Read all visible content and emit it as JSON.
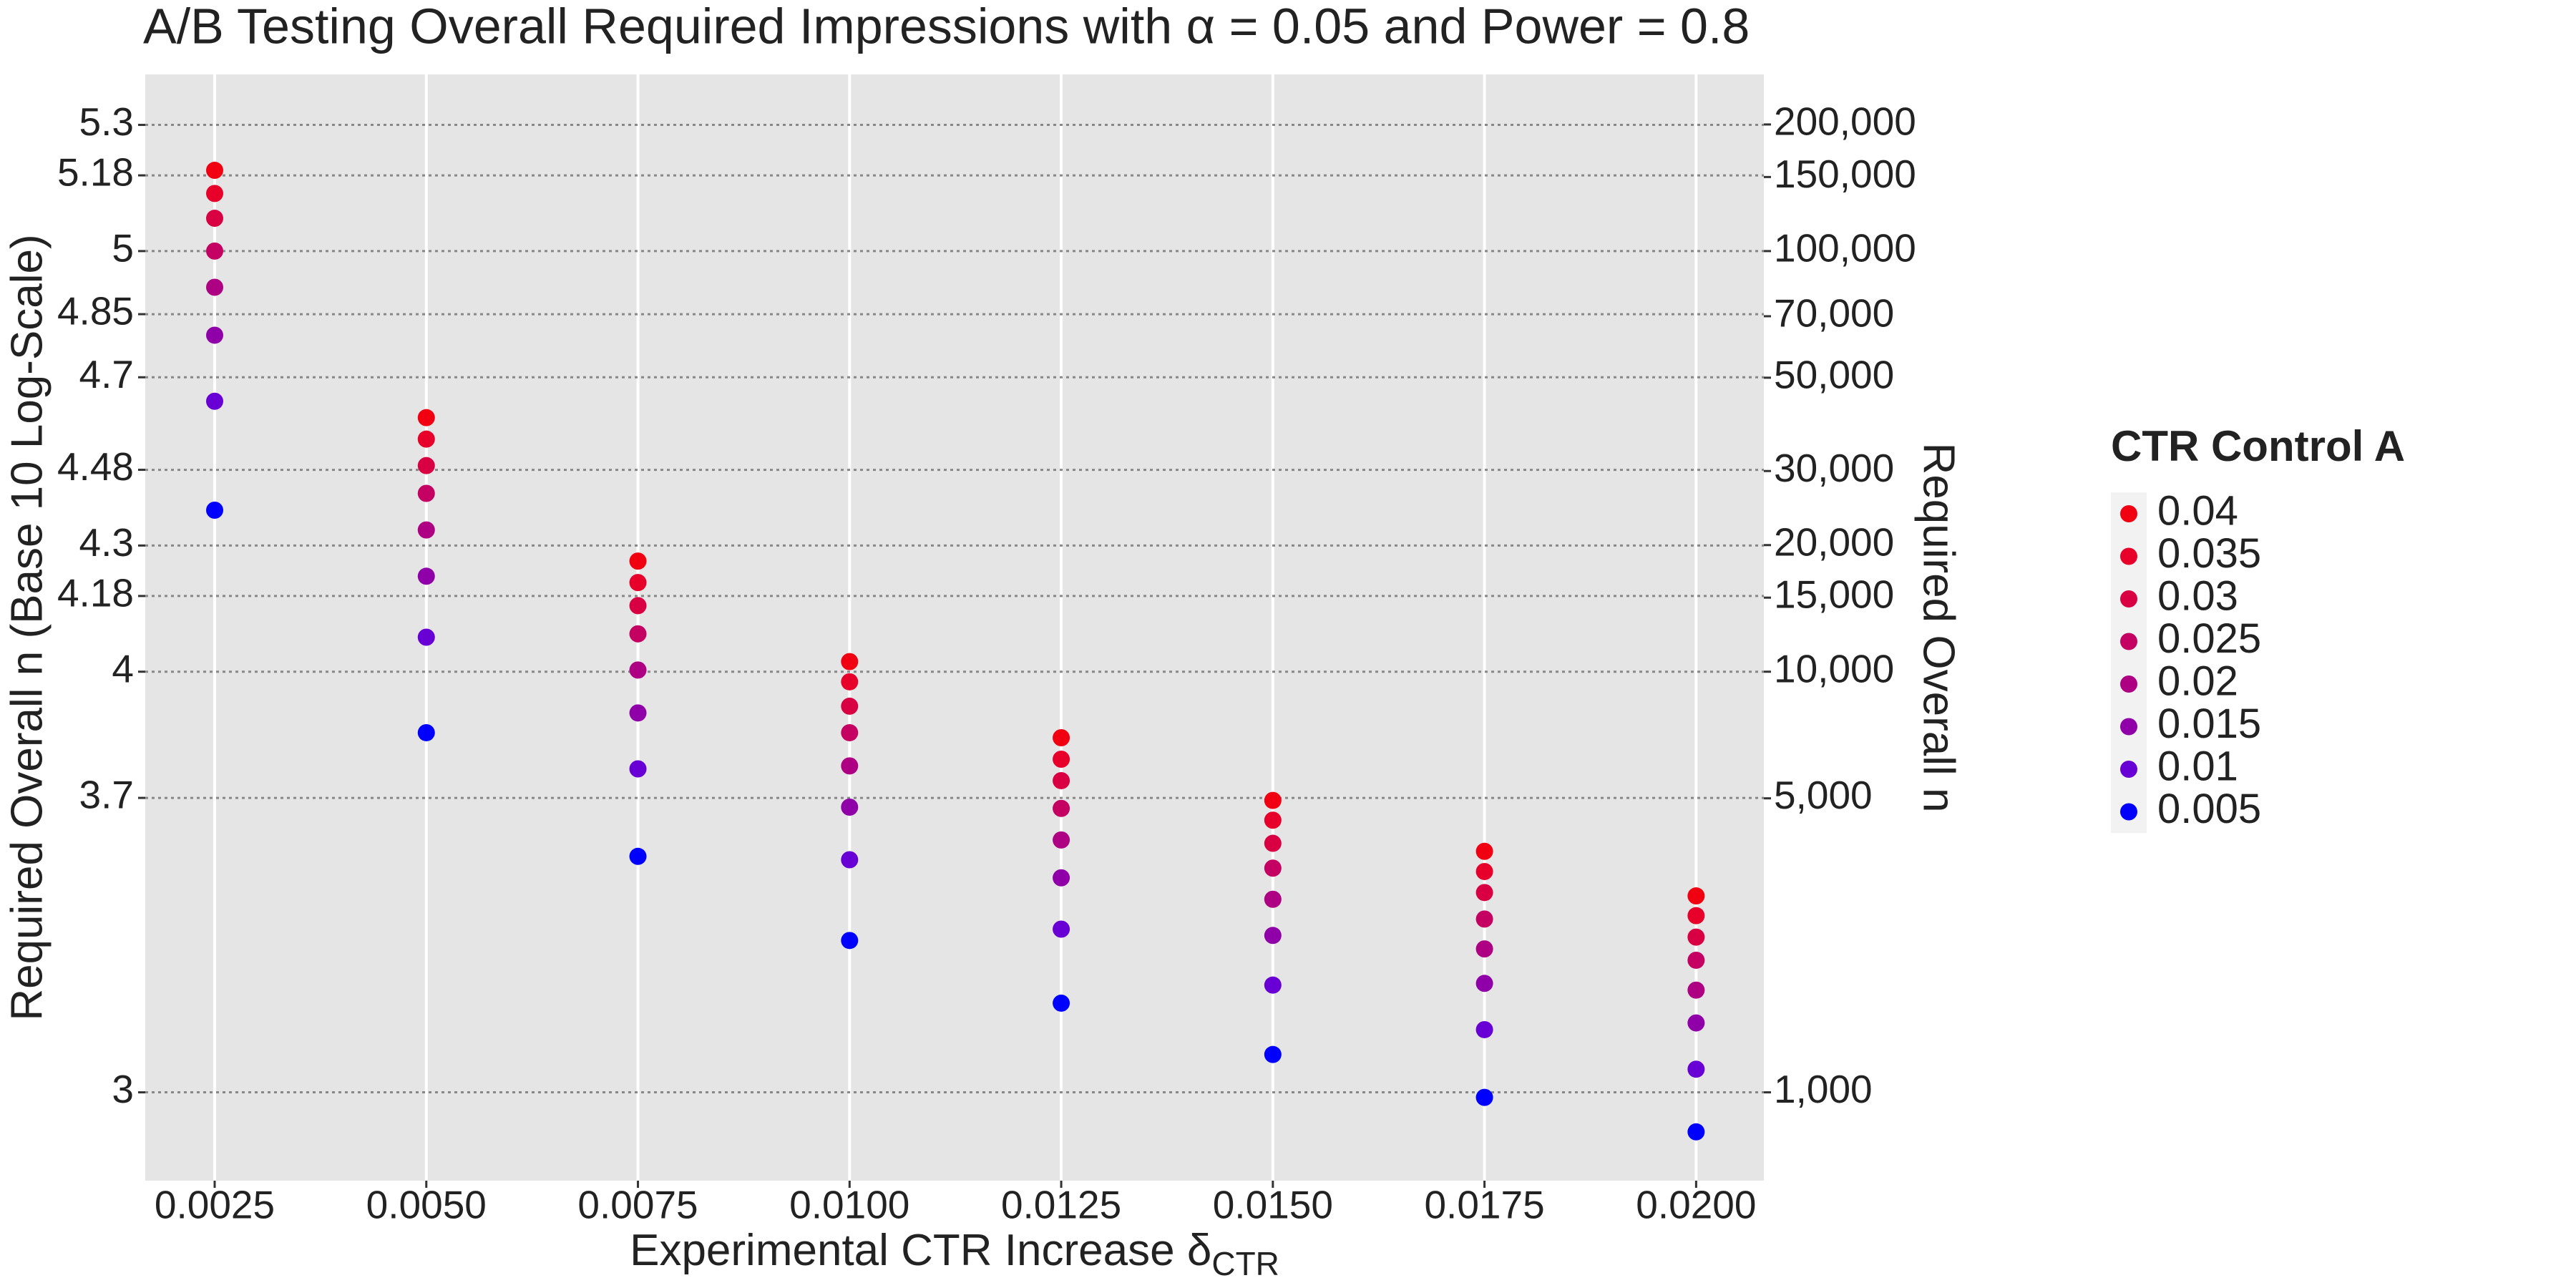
{
  "chart_data": {
    "type": "scatter",
    "title": "A/B Testing Overall Required Impressions with α = 0.05 and Power = 0.8",
    "x_label": "Experimental CTR Increase δ",
    "x_label_subscript": "CTR",
    "y_label": "Required Overall n (Base 10 Log-Scale)",
    "y2_label": "Required Overall n",
    "legend_title": "CTR Control A",
    "legend_position": "right",
    "x": [
      0.0025,
      0.005,
      0.0075,
      0.01,
      0.0125,
      0.015,
      0.0175,
      0.02
    ],
    "xlim": [
      0.00168,
      0.0208
    ],
    "xticks": [
      {
        "value": 0.0025,
        "label": "0.0025"
      },
      {
        "value": 0.005,
        "label": "0.0050"
      },
      {
        "value": 0.0075,
        "label": "0.0075"
      },
      {
        "value": 0.01,
        "label": "0.0100"
      },
      {
        "value": 0.0125,
        "label": "0.0125"
      },
      {
        "value": 0.015,
        "label": "0.0150"
      },
      {
        "value": 0.0175,
        "label": "0.0175"
      },
      {
        "value": 0.02,
        "label": "0.0200"
      }
    ],
    "ylim": [
      2.79,
      5.42
    ],
    "yticks": [
      3,
      3.7,
      4,
      4.18,
      4.3,
      4.48,
      4.7,
      4.85,
      5,
      5.18,
      5.3
    ],
    "y2lim": [
      616.6,
      263027
    ],
    "y2_log": true,
    "y2ticks": [
      {
        "value": 1000,
        "label": "1,000"
      },
      {
        "value": 5000,
        "label": "5,000"
      },
      {
        "value": 10000,
        "label": "10,000"
      },
      {
        "value": 15000,
        "label": "15,000"
      },
      {
        "value": 20000,
        "label": "20,000"
      },
      {
        "value": 30000,
        "label": "30,000"
      },
      {
        "value": 50000,
        "label": "50,000"
      },
      {
        "value": 70000,
        "label": "70,000"
      },
      {
        "value": 100000,
        "label": "100,000"
      },
      {
        "value": 150000,
        "label": "150,000"
      },
      {
        "value": 200000,
        "label": "200,000"
      }
    ],
    "grid": true,
    "series": [
      {
        "name": "0.04",
        "color": "#f00010",
        "values": [
          5.192,
          4.604,
          4.263,
          4.024,
          3.843,
          3.694,
          3.573,
          3.467
        ]
      },
      {
        "name": "0.035",
        "color": "#e6002a",
        "values": [
          5.137,
          4.553,
          4.212,
          3.976,
          3.792,
          3.647,
          3.525,
          3.42
        ]
      },
      {
        "name": "0.03",
        "color": "#d80042",
        "values": [
          5.078,
          4.49,
          4.157,
          3.918,
          3.741,
          3.592,
          3.475,
          3.369
        ]
      },
      {
        "name": "0.025",
        "color": "#c50063",
        "values": [
          5.0,
          4.424,
          4.09,
          3.855,
          3.675,
          3.533,
          3.412,
          3.314
        ]
      },
      {
        "name": "0.02",
        "color": "#ae0082",
        "values": [
          4.914,
          4.337,
          4.004,
          3.776,
          3.6,
          3.459,
          3.341,
          3.243
        ]
      },
      {
        "name": "0.015",
        "color": "#9000a8",
        "values": [
          4.8,
          4.227,
          3.902,
          3.678,
          3.51,
          3.373,
          3.259,
          3.165
        ]
      },
      {
        "name": "0.01",
        "color": "#6800d6",
        "values": [
          4.643,
          4.082,
          3.769,
          3.553,
          3.388,
          3.255,
          3.149,
          3.055
        ]
      },
      {
        "name": "0.005",
        "color": "#0000ff",
        "values": [
          4.384,
          3.855,
          3.561,
          3.361,
          3.212,
          3.09,
          2.988,
          2.906
        ]
      }
    ]
  }
}
